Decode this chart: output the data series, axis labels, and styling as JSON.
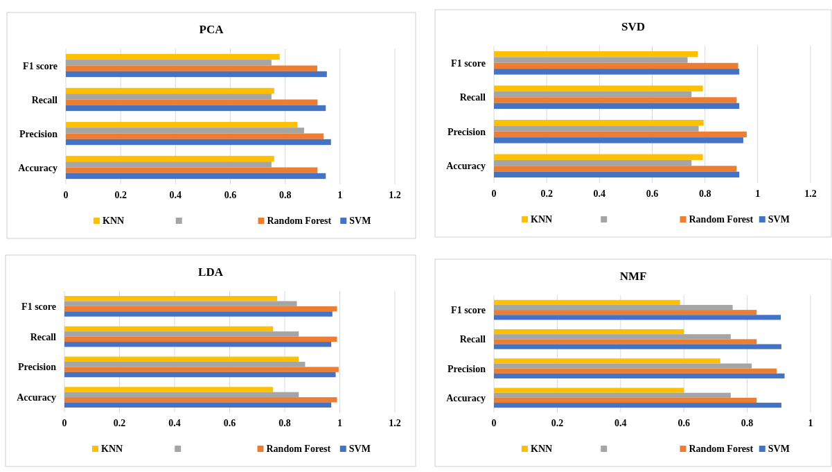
{
  "chart_data": [
    {
      "type": "bar",
      "orientation": "horizontal",
      "title": "PCA",
      "categories": [
        "F1 score",
        "Recall",
        "Precision",
        "Accuracy"
      ],
      "series": [
        {
          "name": "KNN",
          "color": "#ffc000",
          "values": [
            0.78,
            0.76,
            0.845,
            0.76
          ]
        },
        {
          "color": "#a5a5a5",
          "values": [
            0.75,
            0.75,
            0.869,
            0.75
          ]
        },
        {
          "name": "Random Forest",
          "color": "#ed7d31",
          "values": [
            0.917,
            0.918,
            0.94,
            0.918
          ]
        },
        {
          "name": "SVM",
          "color": "#4472c4",
          "values": [
            0.952,
            0.948,
            0.967,
            0.948
          ]
        }
      ],
      "xlim": [
        0,
        1.2
      ],
      "xticks": [
        0,
        0.2,
        0.4,
        0.6,
        0.8,
        1,
        1.2
      ],
      "grid": "x",
      "legend": "bottom"
    },
    {
      "type": "bar",
      "orientation": "horizontal",
      "title": "SVD",
      "categories": [
        "F1 score",
        "Recall",
        "Precision",
        "Accuracy"
      ],
      "series": [
        {
          "name": "KNN",
          "color": "#ffc000",
          "values": [
            0.773,
            0.792,
            0.795,
            0.792
          ]
        },
        {
          "color": "#a5a5a5",
          "values": [
            0.734,
            0.749,
            0.776,
            0.749
          ]
        },
        {
          "name": "Random Forest",
          "color": "#ed7d31",
          "values": [
            0.926,
            0.92,
            0.958,
            0.92
          ]
        },
        {
          "name": "SVM",
          "color": "#4472c4",
          "values": [
            0.93,
            0.93,
            0.945,
            0.93
          ]
        }
      ],
      "xlim": [
        0,
        1.2
      ],
      "xticks": [
        0,
        0.2,
        0.4,
        0.6,
        0.8,
        1,
        1.2
      ],
      "grid": "x",
      "legend": "bottom"
    },
    {
      "type": "bar",
      "orientation": "horizontal",
      "title": "LDA",
      "categories": [
        "F1 score",
        "Recall",
        "Precision",
        "Accuracy"
      ],
      "series": [
        {
          "name": "KNN",
          "color": "#ffc000",
          "values": [
            0.773,
            0.758,
            0.851,
            0.758
          ]
        },
        {
          "color": "#a5a5a5",
          "values": [
            0.844,
            0.851,
            0.874,
            0.851
          ]
        },
        {
          "name": "Random Forest",
          "color": "#ed7d31",
          "values": [
            0.99,
            0.99,
            0.996,
            0.99
          ]
        },
        {
          "name": "SVM",
          "color": "#4472c4",
          "values": [
            0.973,
            0.969,
            0.985,
            0.969
          ]
        }
      ],
      "xlim": [
        0,
        1.2
      ],
      "xticks": [
        0,
        0.2,
        0.4,
        0.6,
        0.8,
        1,
        1.2
      ],
      "grid": "x",
      "legend": "bottom"
    },
    {
      "type": "bar",
      "orientation": "horizontal",
      "title": "NMF",
      "categories": [
        "F1 score",
        "Recall",
        "Precision",
        "Accuracy"
      ],
      "series": [
        {
          "name": "KNN",
          "color": "#ffc000",
          "values": [
            0.588,
            0.6,
            0.715,
            0.6
          ]
        },
        {
          "color": "#a5a5a5",
          "values": [
            0.754,
            0.748,
            0.814,
            0.748
          ]
        },
        {
          "name": "Random Forest",
          "color": "#ed7d31",
          "values": [
            0.83,
            0.83,
            0.893,
            0.83
          ]
        },
        {
          "name": "SVM",
          "color": "#4472c4",
          "values": [
            0.906,
            0.908,
            0.918,
            0.908
          ]
        }
      ],
      "xlim": [
        0,
        1
      ],
      "xticks": [
        0,
        0.2,
        0.4,
        0.6,
        0.8,
        1
      ],
      "grid": "x",
      "legend": "bottom"
    }
  ]
}
